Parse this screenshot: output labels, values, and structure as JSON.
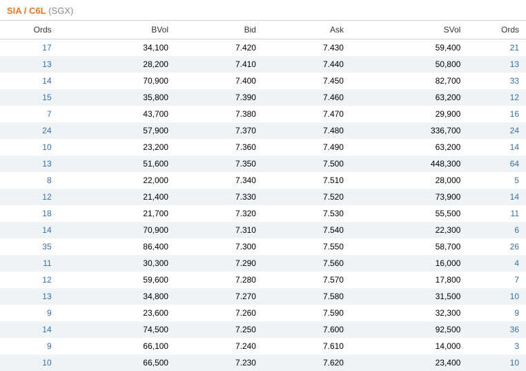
{
  "header": {
    "ticker": "SIA / C6L",
    "exchange": "(SGX)"
  },
  "table": {
    "columns": [
      "Ords",
      "BVol",
      "Bid",
      "Ask",
      "SVol",
      "Ords"
    ],
    "column_alignments": [
      "right",
      "right",
      "right",
      "right",
      "right",
      "right"
    ],
    "colors": {
      "header_bg": "#ffffff",
      "row_even_bg": "#eef3f6",
      "row_odd_bg": "#ffffff",
      "border_color": "#d0d0d0",
      "ticker_color": "#e87722",
      "exchange_color": "#888888",
      "ords_link_color": "#3b6ea5",
      "text_color": "#333333"
    },
    "rows": [
      {
        "bid_ords": "17",
        "bvol": "34,100",
        "bid": "7.420",
        "ask": "7.430",
        "svol": "59,400",
        "ask_ords": "21"
      },
      {
        "bid_ords": "13",
        "bvol": "28,200",
        "bid": "7.410",
        "ask": "7.440",
        "svol": "50,800",
        "ask_ords": "13"
      },
      {
        "bid_ords": "14",
        "bvol": "70,900",
        "bid": "7.400",
        "ask": "7.450",
        "svol": "82,700",
        "ask_ords": "33"
      },
      {
        "bid_ords": "15",
        "bvol": "35,800",
        "bid": "7.390",
        "ask": "7.460",
        "svol": "63,200",
        "ask_ords": "12"
      },
      {
        "bid_ords": "7",
        "bvol": "43,700",
        "bid": "7.380",
        "ask": "7.470",
        "svol": "29,900",
        "ask_ords": "16"
      },
      {
        "bid_ords": "24",
        "bvol": "57,900",
        "bid": "7.370",
        "ask": "7.480",
        "svol": "336,700",
        "ask_ords": "24"
      },
      {
        "bid_ords": "10",
        "bvol": "23,200",
        "bid": "7.360",
        "ask": "7.490",
        "svol": "63,200",
        "ask_ords": "14"
      },
      {
        "bid_ords": "13",
        "bvol": "51,600",
        "bid": "7.350",
        "ask": "7.500",
        "svol": "448,300",
        "ask_ords": "64"
      },
      {
        "bid_ords": "8",
        "bvol": "22,000",
        "bid": "7.340",
        "ask": "7.510",
        "svol": "28,000",
        "ask_ords": "5"
      },
      {
        "bid_ords": "12",
        "bvol": "21,400",
        "bid": "7.330",
        "ask": "7.520",
        "svol": "73,900",
        "ask_ords": "14"
      },
      {
        "bid_ords": "18",
        "bvol": "21,700",
        "bid": "7.320",
        "ask": "7.530",
        "svol": "55,500",
        "ask_ords": "11"
      },
      {
        "bid_ords": "14",
        "bvol": "70,900",
        "bid": "7.310",
        "ask": "7.540",
        "svol": "22,300",
        "ask_ords": "6"
      },
      {
        "bid_ords": "35",
        "bvol": "86,400",
        "bid": "7.300",
        "ask": "7.550",
        "svol": "58,700",
        "ask_ords": "26"
      },
      {
        "bid_ords": "11",
        "bvol": "30,300",
        "bid": "7.290",
        "ask": "7.560",
        "svol": "16,000",
        "ask_ords": "4"
      },
      {
        "bid_ords": "12",
        "bvol": "59,600",
        "bid": "7.280",
        "ask": "7.570",
        "svol": "17,800",
        "ask_ords": "7"
      },
      {
        "bid_ords": "13",
        "bvol": "34,800",
        "bid": "7.270",
        "ask": "7.580",
        "svol": "31,500",
        "ask_ords": "10"
      },
      {
        "bid_ords": "9",
        "bvol": "23,600",
        "bid": "7.260",
        "ask": "7.590",
        "svol": "32,300",
        "ask_ords": "9"
      },
      {
        "bid_ords": "14",
        "bvol": "74,500",
        "bid": "7.250",
        "ask": "7.600",
        "svol": "92,500",
        "ask_ords": "36"
      },
      {
        "bid_ords": "9",
        "bvol": "66,100",
        "bid": "7.240",
        "ask": "7.610",
        "svol": "14,000",
        "ask_ords": "3"
      },
      {
        "bid_ords": "10",
        "bvol": "66,500",
        "bid": "7.230",
        "ask": "7.620",
        "svol": "23,400",
        "ask_ords": "10"
      }
    ]
  }
}
